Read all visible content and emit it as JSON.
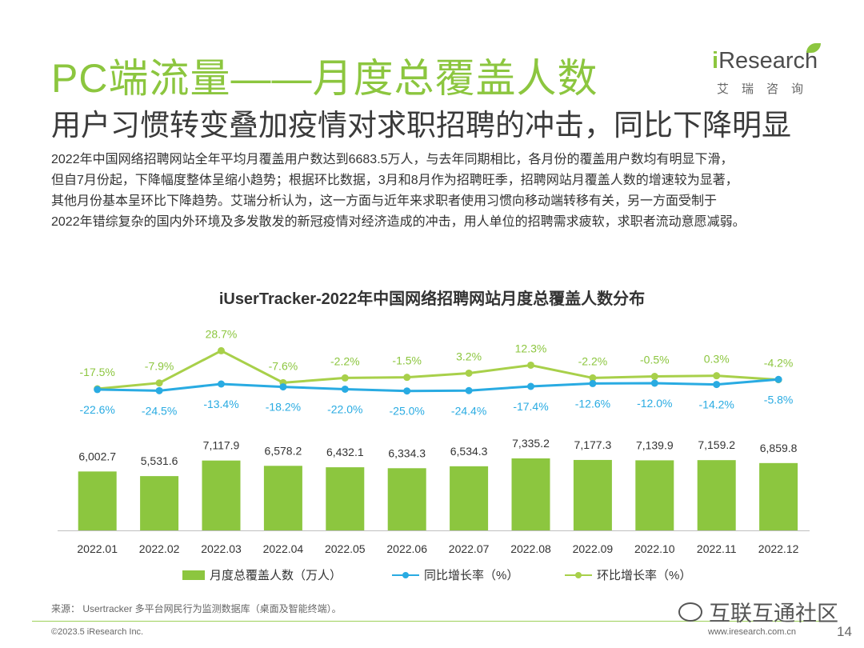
{
  "header": {
    "title": "PC端流量——月度总覆盖人数",
    "subtitle": "用户习惯转变叠加疫情对求职招聘的冲击，同比下降明显"
  },
  "logo": {
    "first_letter": "i",
    "word": "Research",
    "cn": "艾瑞咨询"
  },
  "body": {
    "lines": [
      "2022年中国网络招聘网站全年平均月覆盖用户数达到6683.5万人，与去年同期相比，各月份的覆盖用户数均有明显下滑，",
      "但自7月份起，下降幅度整体呈缩小趋势；根据环比数据，3月和8月作为招聘旺季，招聘网站月覆盖人数的增速较为显著，",
      "其他月份基本呈环比下降趋势。艾瑞分析认为，这一方面与近年来求职者使用习惯向移动端转移有关，另一方面受制于",
      "2022年错综复杂的国内外环境及多发散发的新冠疫情对经济造成的冲击，用人单位的招聘需求疲软，求职者流动意愿减弱。"
    ]
  },
  "chart_data": {
    "type": "bar",
    "title": "iUserTracker-2022年中国网络招聘网站月度总覆盖人数分布",
    "categories": [
      "2022.01",
      "2022.02",
      "2022.03",
      "2022.04",
      "2022.05",
      "2022.06",
      "2022.07",
      "2022.08",
      "2022.09",
      "2022.10",
      "2022.11",
      "2022.12"
    ],
    "series": [
      {
        "name": "月度总覆盖人数（万人）",
        "kind": "bar",
        "color": "#8cc63f",
        "values": [
          6002.7,
          5531.6,
          7117.9,
          6578.2,
          6432.1,
          6334.3,
          6534.3,
          7335.2,
          7177.3,
          7139.9,
          7159.2,
          6859.8
        ],
        "labels": [
          "6,002.7",
          "5,531.6",
          "7,117.9",
          "6,578.2",
          "6,432.1",
          "6,334.3",
          "6,534.3",
          "7,335.2",
          "7,177.3",
          "7,139.9",
          "7,159.2",
          "6,859.8"
        ]
      },
      {
        "name": "同比增长率（%）",
        "kind": "line",
        "color": "#29abe2",
        "values": [
          -22.6,
          -24.5,
          -13.4,
          -18.2,
          -22.0,
          -25.0,
          -24.4,
          -17.4,
          -12.6,
          -12.0,
          -14.2,
          -5.8
        ],
        "labels": [
          "-22.6%",
          "-24.5%",
          "-13.4%",
          "-18.2%",
          "-22.0%",
          "-25.0%",
          "-24.4%",
          "-17.4%",
          "-12.6%",
          "-12.0%",
          "-14.2%",
          "-5.8%"
        ]
      },
      {
        "name": "环比增长率（%）",
        "kind": "line",
        "color": "#a8d04a",
        "values": [
          -17.5,
          -7.9,
          28.7,
          -7.6,
          -2.2,
          -1.5,
          3.2,
          12.3,
          -2.2,
          -0.5,
          0.3,
          -4.2
        ],
        "labels": [
          "-17.5%",
          "-7.9%",
          "28.7%",
          "-7.6%",
          "-2.2%",
          "-1.5%",
          "3.2%",
          "12.3%",
          "-2.2%",
          "-0.5%",
          "0.3%",
          "-4.2%"
        ]
      }
    ],
    "ylim": [
      0,
      10000
    ],
    "grid": false,
    "legend": "bottom"
  },
  "footer": {
    "source": "来源： Usertracker 多平台网民行为监测数据库（桌面及智能终端）。",
    "copyright": "©2023.5 iResearch Inc.",
    "url": "www.iresearch.com.cn",
    "page": "14"
  },
  "watermark": {
    "text": "互联互通社区"
  }
}
